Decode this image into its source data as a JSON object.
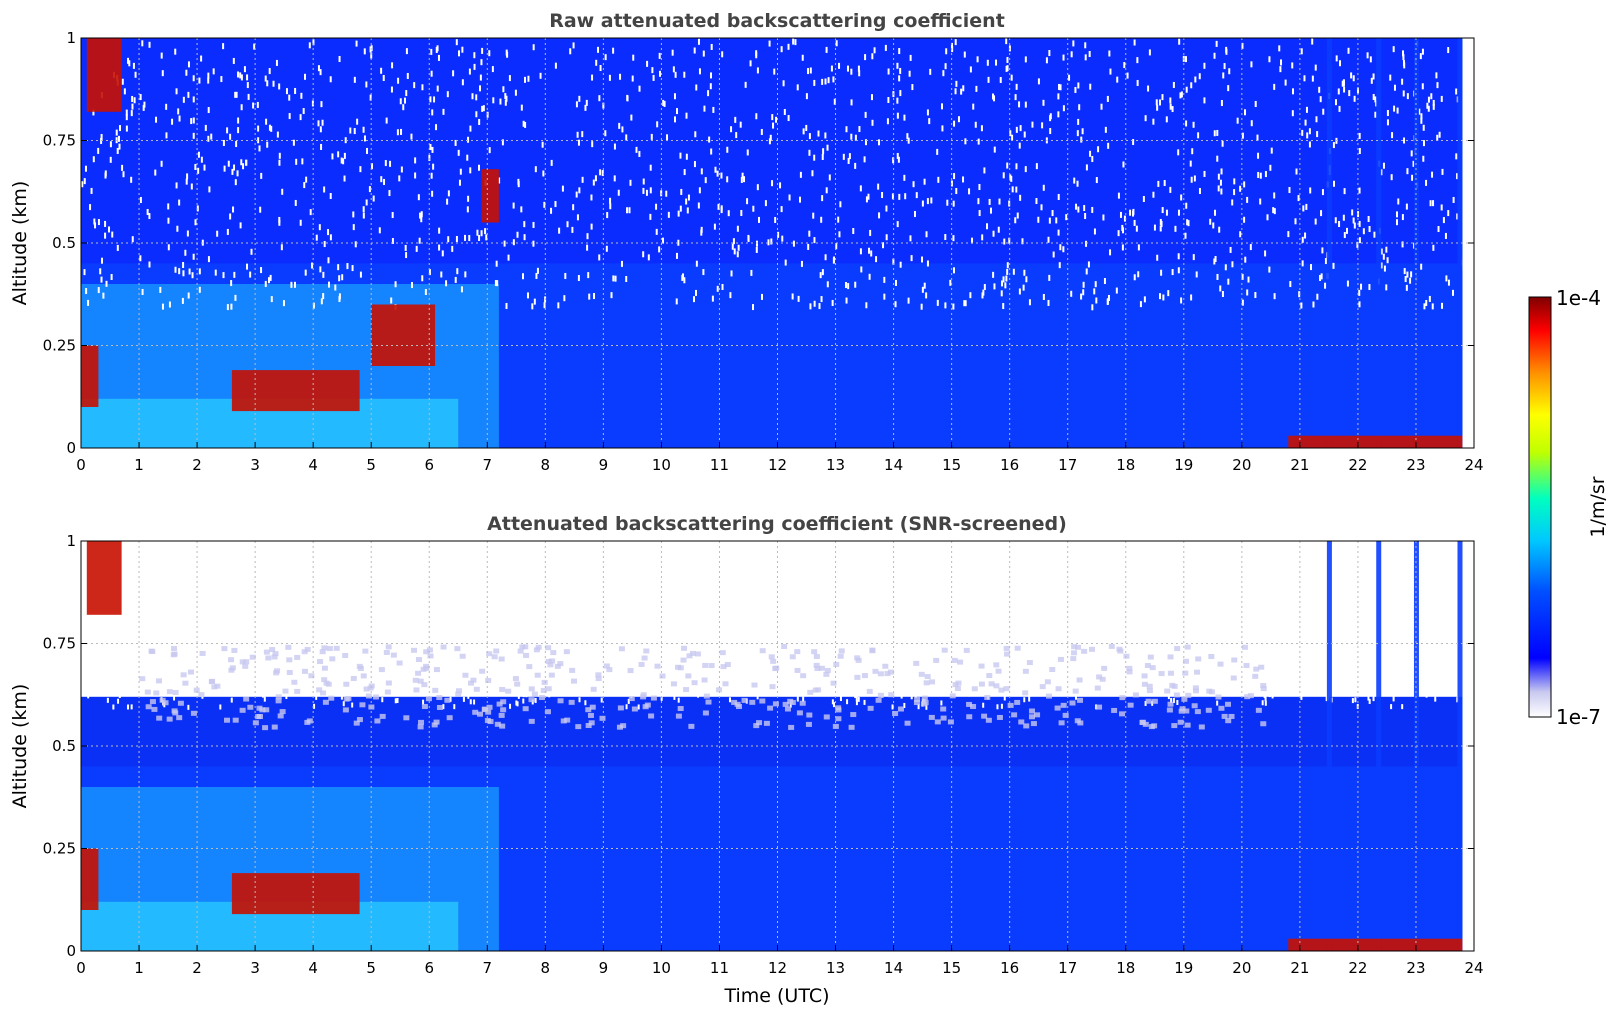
{
  "chart_data": [
    {
      "type": "heatmap",
      "title": "Raw attenuated backscattering coefficient",
      "xlabel": "",
      "ylabel": "Altitude (km)",
      "xlim": [
        0,
        24
      ],
      "ylim": [
        0,
        1
      ],
      "x_ticks": [
        "0",
        "1",
        "2",
        "3",
        "4",
        "5",
        "6",
        "7",
        "8",
        "9",
        "10",
        "11",
        "12",
        "13",
        "14",
        "15",
        "16",
        "17",
        "18",
        "19",
        "20",
        "21",
        "22",
        "23",
        "24"
      ],
      "y_ticks": [
        "0",
        "0.25",
        "0.5",
        "0.75",
        "1"
      ],
      "grid": true,
      "features": [
        {
          "x_start": 0.1,
          "x_end": 0.7,
          "y_start": 0.82,
          "y_end": 1.0,
          "level": "high"
        },
        {
          "x_start": 0.0,
          "x_end": 0.3,
          "y_start": 0.1,
          "y_end": 0.25,
          "level": "high"
        },
        {
          "x_start": 2.6,
          "x_end": 4.8,
          "y_start": 0.09,
          "y_end": 0.19,
          "level": "high"
        },
        {
          "x_start": 5.0,
          "x_end": 6.1,
          "y_start": 0.2,
          "y_end": 0.35,
          "level": "high"
        },
        {
          "x_start": 6.9,
          "x_end": 7.2,
          "y_start": 0.55,
          "y_end": 0.68,
          "level": "high"
        },
        {
          "x_start": 20.8,
          "x_end": 23.8,
          "y_start": 0.0,
          "y_end": 0.03,
          "level": "high"
        }
      ]
    },
    {
      "type": "heatmap",
      "title": "Attenuated backscattering coefficient (SNR-screened)",
      "xlabel": "Time (UTC)",
      "ylabel": "Altitude (km)",
      "xlim": [
        0,
        24
      ],
      "ylim": [
        0,
        1
      ],
      "x_ticks": [
        "0",
        "1",
        "2",
        "3",
        "4",
        "5",
        "6",
        "7",
        "8",
        "9",
        "10",
        "11",
        "12",
        "13",
        "14",
        "15",
        "16",
        "17",
        "18",
        "19",
        "20",
        "21",
        "22",
        "23",
        "24"
      ],
      "y_ticks": [
        "0",
        "0.25",
        "0.5",
        "0.75",
        "1"
      ],
      "grid": true,
      "features": [
        {
          "x_start": 0.1,
          "x_end": 0.7,
          "y_start": 0.82,
          "y_end": 1.0,
          "level": "high"
        },
        {
          "x_start": 0.0,
          "x_end": 0.3,
          "y_start": 0.1,
          "y_end": 0.25,
          "level": "high"
        },
        {
          "x_start": 2.6,
          "x_end": 4.8,
          "y_start": 0.09,
          "y_end": 0.19,
          "level": "high"
        },
        {
          "x_start": 20.8,
          "x_end": 23.8,
          "y_start": 0.0,
          "y_end": 0.03,
          "level": "high"
        }
      ]
    }
  ],
  "colorbar": {
    "label": "1/m/sr",
    "max_label": "1e-4",
    "min_label": "1e-7",
    "colors": [
      "#ffffff",
      "#c8c8f0",
      "#0000ff",
      "#0050ff",
      "#00c8ff",
      "#00ffc0",
      "#c0ff00",
      "#ffff00",
      "#ff9000",
      "#ff0000",
      "#800000"
    ]
  }
}
